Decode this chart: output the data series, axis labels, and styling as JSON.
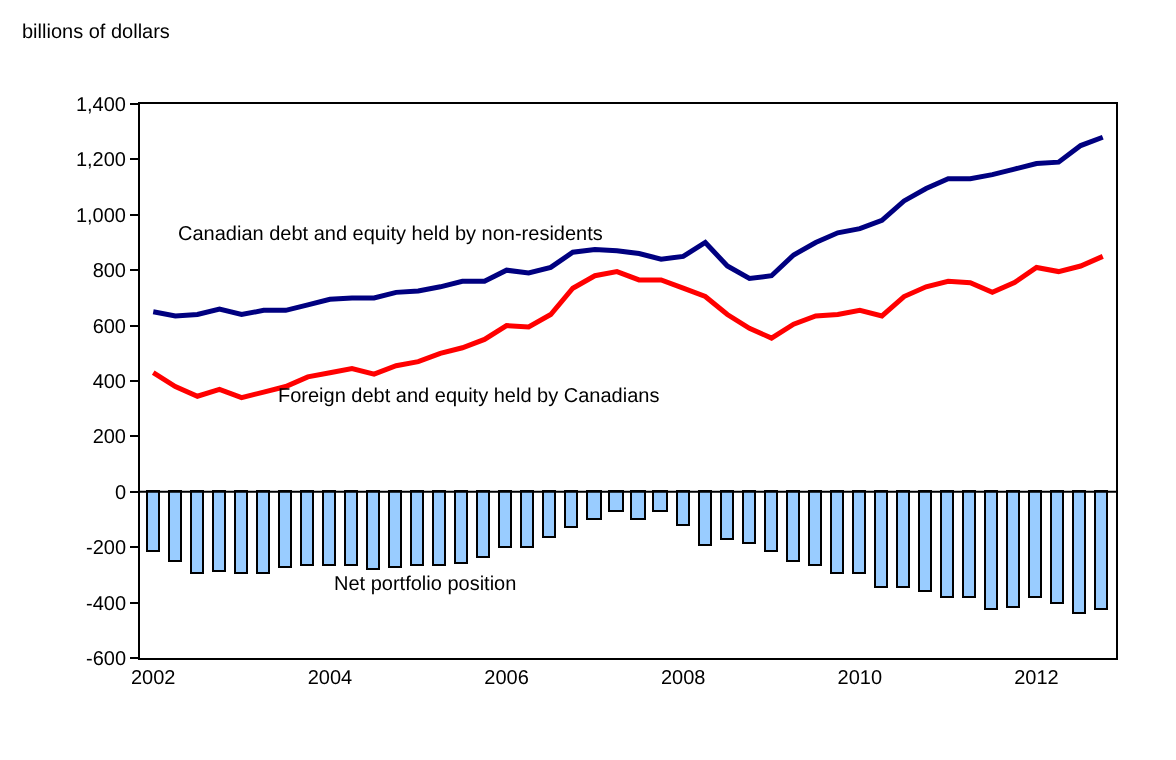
{
  "chart_data": {
    "type": "line",
    "ylabel": "billions of dollars",
    "x": [
      2002,
      2002.25,
      2002.5,
      2002.75,
      2003,
      2003.25,
      2003.5,
      2003.75,
      2004,
      2004.25,
      2004.5,
      2004.75,
      2005,
      2005.25,
      2005.5,
      2005.75,
      2006,
      2006.25,
      2006.5,
      2006.75,
      2007,
      2007.25,
      2007.5,
      2007.75,
      2008,
      2008.25,
      2008.5,
      2008.75,
      2009,
      2009.25,
      2009.5,
      2009.75,
      2010,
      2010.25,
      2010.5,
      2010.75,
      2011,
      2011.25,
      2011.5,
      2011.75,
      2012,
      2012.25,
      2012.5,
      2012.75
    ],
    "series": [
      {
        "name": "Canadian debt and equity held by non-residents",
        "color": "#000080",
        "values": [
          650,
          635,
          640,
          660,
          640,
          655,
          655,
          675,
          695,
          700,
          700,
          720,
          725,
          740,
          760,
          760,
          800,
          790,
          810,
          865,
          875,
          870,
          860,
          840,
          850,
          900,
          815,
          770,
          780,
          855,
          900,
          935,
          950,
          980,
          1050,
          1095,
          1130,
          1130,
          1145,
          1165,
          1185,
          1190,
          1250,
          1280
        ]
      },
      {
        "name": "Foreign debt and equity held by Canadians",
        "color": "#ff0000",
        "values": [
          430,
          380,
          345,
          370,
          340,
          360,
          380,
          415,
          430,
          445,
          425,
          455,
          470,
          500,
          520,
          550,
          600,
          595,
          640,
          735,
          780,
          795,
          765,
          765,
          735,
          705,
          640,
          590,
          555,
          605,
          635,
          640,
          655,
          635,
          705,
          740,
          760,
          755,
          720,
          755,
          810,
          795,
          815,
          850
        ]
      },
      {
        "name": "Net portfolio position",
        "type": "bar",
        "color": "#99ccff",
        "values": [
          -220,
          -255,
          -295,
          -290,
          -300,
          -300,
          -275,
          -270,
          -270,
          -265,
          -280,
          -275,
          -270,
          -265,
          -260,
          -240,
          -205,
          -200,
          -170,
          -130,
          -100,
          -75,
          -105,
          -70,
          -125,
          -195,
          -175,
          -185,
          -220,
          -255,
          -265,
          -295,
          -295,
          -345,
          -345,
          -360,
          -380,
          -380,
          -425,
          -420,
          -380,
          -405,
          -440,
          -425
        ]
      }
    ],
    "xlim": [
      2001.85,
      2012.9
    ],
    "xticks": [
      2002,
      2004,
      2006,
      2008,
      2010,
      2012
    ],
    "ylim": [
      -600,
      1400
    ],
    "yticks": [
      {
        "value": -600,
        "label": "-600"
      },
      {
        "value": -400,
        "label": "-400"
      },
      {
        "value": -200,
        "label": "-200"
      },
      0,
      200,
      400,
      600,
      800,
      {
        "value": 1000,
        "label": "1,000"
      },
      {
        "value": 1200,
        "label": "1,200"
      },
      {
        "value": 1400,
        "label": "1,400"
      }
    ],
    "ref_lines": [
      {
        "axis": "y",
        "value": 0,
        "color": "#000000",
        "line_style": "solid"
      }
    ],
    "legend": false
  }
}
